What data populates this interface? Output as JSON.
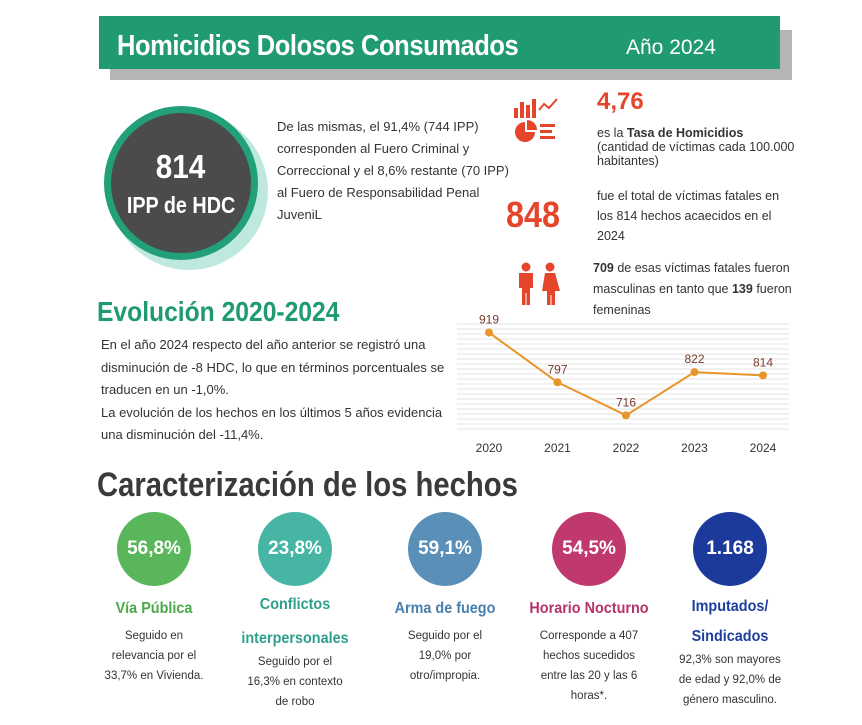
{
  "header": {
    "title": "Homicidios Dolosos Consumados",
    "year": "Año 2024"
  },
  "ipp": {
    "number": "814",
    "label": "IPP de HDC",
    "paragraph": "De las mismas, el 91,4% (744 IPP) corresponden al Fuero Criminal y Correccional y el 8,6% restante (70 IPP) al Fuero de Responsabilidad Penal JuveniL"
  },
  "rate": {
    "value": "4,76",
    "desc_prefix": "es la ",
    "desc_bold": "Tasa de Homicidios",
    "desc_suffix": " (cantidad de víctimas cada 100.000 habitantes)"
  },
  "victims": {
    "value": "848",
    "desc": "fue el total de víctimas fatales en los 814 hechos acaecidos en el 2024"
  },
  "gender": {
    "male_count": "709",
    "text_1": " de esas víctimas fatales fueron masculinas en tanto que ",
    "female_count": "139",
    "text_2": " fueron femeninas"
  },
  "evolution": {
    "title": "Evolución 2020-2024",
    "text_1": "En el año 2024 respecto del año anterior se registró una disminución de -8 HDC, lo que en términos porcentuales se traducen en un -1,0%.",
    "text_2": "La evolución de los hechos en los últimos 5 años evidencia una disminución del -11,4%."
  },
  "chart_data": {
    "type": "line",
    "categories": [
      "2020",
      "2021",
      "2022",
      "2023",
      "2024"
    ],
    "values": [
      919,
      797,
      716,
      822,
      814
    ],
    "ylim": [
      680,
      940
    ],
    "grid": true,
    "color": "#e8952a"
  },
  "characterization": {
    "title": "Caracterización de los hechos",
    "stats": [
      {
        "value": "56,8%",
        "label": "Vía Pública",
        "desc": "Seguido en relevancia por el 33,7% en Vivienda.",
        "color": "#5ab65a",
        "label_color": "#4aa84a"
      },
      {
        "value": "23,8%",
        "label": "Conflictos interpersonales",
        "desc": "Seguido por el 16,3% en contexto de robo",
        "color": "#47b5a3",
        "label_color": "#2f9e8c"
      },
      {
        "value": "59,1%",
        "label": "Arma de fuego",
        "desc": "Seguido por el 19,0% por otro/impropia.",
        "color": "#5a8fb8",
        "label_color": "#4a7fae"
      },
      {
        "value": "54,5%",
        "label": "Horario Nocturno",
        "desc": "Corresponde a 407 hechos sucedidos entre las 20 y las 6 horas*.",
        "color": "#c0396e",
        "label_color": "#b6336a"
      },
      {
        "value": "1.168",
        "label": "Imputados/ Sindicados",
        "desc": "92,3% son mayores de edad y 92,0% de género masculino.",
        "color": "#1b3a9c",
        "label_color": "#1f3f9e"
      }
    ]
  }
}
